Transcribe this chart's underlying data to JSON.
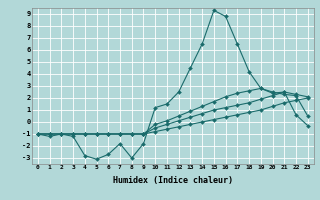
{
  "xlabel": "Humidex (Indice chaleur)",
  "background_color": "#b2d8d8",
  "grid_color": "#ffffff",
  "line_color": "#1a6b6b",
  "xlim": [
    -0.5,
    23.5
  ],
  "ylim": [
    -3.5,
    9.5
  ],
  "xticks": [
    0,
    1,
    2,
    3,
    4,
    5,
    6,
    7,
    8,
    9,
    10,
    11,
    12,
    13,
    14,
    15,
    16,
    17,
    18,
    19,
    20,
    21,
    22,
    23
  ],
  "yticks": [
    -3,
    -2,
    -1,
    0,
    1,
    2,
    3,
    4,
    5,
    6,
    7,
    8,
    9
  ],
  "series": [
    {
      "x": [
        0,
        1,
        2,
        3,
        4,
        5,
        6,
        7,
        8,
        9,
        10,
        11,
        12,
        13,
        14,
        15,
        16,
        17,
        18,
        19,
        20,
        21,
        22,
        23
      ],
      "y": [
        -1,
        -1.2,
        -1,
        -1.2,
        -2.8,
        -3.1,
        -2.7,
        -1.8,
        -3,
        -1.8,
        1.2,
        1.5,
        2.5,
        4.5,
        6.5,
        9.3,
        8.8,
        6.5,
        4.2,
        2.8,
        2.4,
        2.5,
        0.6,
        -0.3
      ]
    },
    {
      "x": [
        0,
        1,
        2,
        3,
        4,
        5,
        6,
        7,
        8,
        9,
        10,
        11,
        12,
        13,
        14,
        15,
        16,
        17,
        18,
        19,
        20,
        21,
        22,
        23
      ],
      "y": [
        -1,
        -1,
        -1,
        -1,
        -1,
        -1,
        -1,
        -1,
        -1,
        -1,
        -0.8,
        -0.6,
        -0.4,
        -0.2,
        0.0,
        0.2,
        0.4,
        0.6,
        0.8,
        1.0,
        1.3,
        1.6,
        1.8,
        2.0
      ]
    },
    {
      "x": [
        0,
        1,
        2,
        3,
        4,
        5,
        6,
        7,
        8,
        9,
        10,
        11,
        12,
        13,
        14,
        15,
        16,
        17,
        18,
        19,
        20,
        21,
        22,
        23
      ],
      "y": [
        -1,
        -1,
        -1,
        -1,
        -1,
        -1,
        -1,
        -1,
        -1,
        -1,
        -0.5,
        -0.2,
        0.1,
        0.4,
        0.7,
        1.0,
        1.2,
        1.4,
        1.6,
        1.9,
        2.2,
        2.5,
        2.3,
        2.1
      ]
    },
    {
      "x": [
        0,
        1,
        2,
        3,
        4,
        5,
        6,
        7,
        8,
        9,
        10,
        11,
        12,
        13,
        14,
        15,
        16,
        17,
        18,
        19,
        20,
        21,
        22,
        23
      ],
      "y": [
        -1,
        -1,
        -1,
        -1,
        -1,
        -1,
        -1,
        -1,
        -1,
        -1,
        -0.2,
        0.1,
        0.5,
        0.9,
        1.3,
        1.7,
        2.1,
        2.4,
        2.6,
        2.8,
        2.5,
        2.3,
        2.2,
        0.5
      ]
    }
  ]
}
